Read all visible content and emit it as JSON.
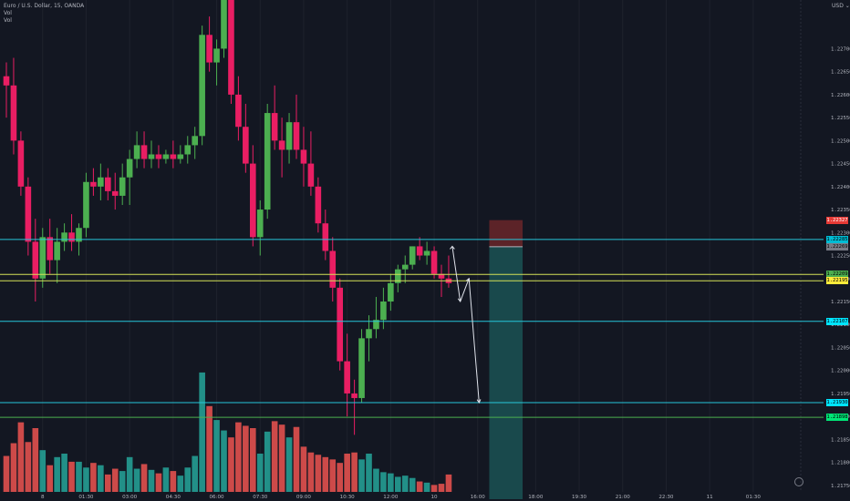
{
  "symbol_title": "Euro / U.S. Dollar, 15, OANDA",
  "indicator_1": "Vol",
  "indicator_2": "Vol",
  "currency": "USD",
  "currency_icon": "chevron-down-icon",
  "settings_icon": "clock-settings-icon",
  "colors": {
    "background": "#131722",
    "up": "#4caf50",
    "down": "#e91e63",
    "vol_up": "#26a69a",
    "vol_down": "#ef5350",
    "cyan_line": "#26c6da",
    "yellow_line": "#d4e157",
    "green_line": "#4caf50"
  },
  "price_badges": [
    {
      "price": 1.22327,
      "label": "1.22327",
      "bg": "#e53935",
      "fg": "#ffffff"
    },
    {
      "price": 1.22285,
      "label": "1.22285",
      "bg": "#00bcd4",
      "fg": "#000000"
    },
    {
      "price": 1.22269,
      "label": "1.22269",
      "bg": "#787b86",
      "fg": "#000000"
    },
    {
      "price": 1.22209,
      "label": "1.22209",
      "bg": "#4caf50",
      "fg": "#000000"
    },
    {
      "price": 1.22195,
      "label": "1.22195",
      "bg": "#ffeb3b",
      "fg": "#000000"
    },
    {
      "price": 1.22107,
      "label": "1.22107",
      "bg": "#00e5ff",
      "fg": "#000000"
    },
    {
      "price": 1.2193,
      "label": "1.21930",
      "bg": "#00e5ff",
      "fg": "#000000"
    },
    {
      "price": 1.21898,
      "label": "1.21898",
      "bg": "#00e676",
      "fg": "#000000"
    }
  ],
  "chart_data": {
    "type": "candlestick",
    "price_ticks": [
      "1.22700",
      "1.22650",
      "1.22600",
      "1.22550",
      "1.22500",
      "1.22450",
      "1.22400",
      "1.22350",
      "1.22300",
      "1.22250",
      "1.22200",
      "1.22150",
      "1.22100",
      "1.22050",
      "1.22000",
      "1.21950",
      "1.21900",
      "1.21850",
      "1.21800",
      "1.21750"
    ],
    "ylim": [
      1.2172,
      1.2279
    ],
    "time_ticks": [
      {
        "label": "8",
        "bar": 5
      },
      {
        "label": "01:30",
        "bar": 11
      },
      {
        "label": "03:00",
        "bar": 17
      },
      {
        "label": "04:30",
        "bar": 23
      },
      {
        "label": "06:00",
        "bar": 29
      },
      {
        "label": "07:30",
        "bar": 35
      },
      {
        "label": "09:00",
        "bar": 41
      },
      {
        "label": "10:30",
        "bar": 47
      },
      {
        "label": "12:00",
        "bar": 53
      },
      {
        "label": "10",
        "bar": 59
      },
      {
        "label": "16:00",
        "bar": 65
      },
      {
        "label": "18:00",
        "bar": 73
      },
      {
        "label": "19:30",
        "bar": 79
      },
      {
        "label": "21:00",
        "bar": 85
      },
      {
        "label": "22:30",
        "bar": 91
      },
      {
        "label": "11",
        "bar": 97
      },
      {
        "label": "01:30",
        "bar": 103
      }
    ],
    "candles": [
      [
        1.2264,
        1.2267,
        1.2255,
        1.2262,
        310
      ],
      [
        1.2262,
        1.2268,
        1.2247,
        1.225,
        420
      ],
      [
        1.225,
        1.2252,
        1.2238,
        1.224,
        600
      ],
      [
        1.224,
        1.2242,
        1.2225,
        1.2228,
        430
      ],
      [
        1.2228,
        1.2233,
        1.2215,
        1.222,
        550
      ],
      [
        1.222,
        1.2231,
        1.2218,
        1.2229,
        360
      ],
      [
        1.2229,
        1.2233,
        1.2221,
        1.2224,
        230
      ],
      [
        1.2224,
        1.2231,
        1.2219,
        1.2228,
        300
      ],
      [
        1.2228,
        1.2232,
        1.2226,
        1.223,
        330
      ],
      [
        1.223,
        1.2234,
        1.2226,
        1.2228,
        260
      ],
      [
        1.2228,
        1.2232,
        1.2225,
        1.2231,
        260
      ],
      [
        1.2231,
        1.2243,
        1.2229,
        1.2241,
        210
      ],
      [
        1.2241,
        1.2244,
        1.2238,
        1.224,
        250
      ],
      [
        1.224,
        1.2245,
        1.2237,
        1.2242,
        230
      ],
      [
        1.2242,
        1.2244,
        1.2237,
        1.2239,
        150
      ],
      [
        1.2239,
        1.2243,
        1.2235,
        1.2238,
        200
      ],
      [
        1.2238,
        1.2245,
        1.2236,
        1.2242,
        180
      ],
      [
        1.2242,
        1.2248,
        1.2236,
        1.2246,
        300
      ],
      [
        1.2246,
        1.2252,
        1.2244,
        1.2249,
        200
      ],
      [
        1.2249,
        1.2252,
        1.2244,
        1.2246,
        240
      ],
      [
        1.2246,
        1.225,
        1.2244,
        1.2247,
        190
      ],
      [
        1.2247,
        1.2249,
        1.2244,
        1.2246,
        160
      ],
      [
        1.2246,
        1.2248,
        1.2245,
        1.2247,
        210
      ],
      [
        1.2247,
        1.225,
        1.2244,
        1.2246,
        180
      ],
      [
        1.2246,
        1.2249,
        1.2245,
        1.2247,
        140
      ],
      [
        1.2247,
        1.2251,
        1.2245,
        1.2249,
        210
      ],
      [
        1.2249,
        1.2253,
        1.2246,
        1.2251,
        310
      ],
      [
        1.2251,
        1.2275,
        1.2249,
        1.2273,
        1030
      ],
      [
        1.2273,
        1.2277,
        1.2265,
        1.2267,
        740
      ],
      [
        1.2267,
        1.2272,
        1.2262,
        1.227,
        620
      ],
      [
        1.227,
        1.229,
        1.2268,
        1.2285,
        530
      ],
      [
        1.2285,
        1.2287,
        1.2258,
        1.226,
        470
      ],
      [
        1.226,
        1.2264,
        1.225,
        1.2253,
        600
      ],
      [
        1.2253,
        1.2258,
        1.2243,
        1.2245,
        570
      ],
      [
        1.2245,
        1.2249,
        1.2227,
        1.2229,
        550
      ],
      [
        1.2229,
        1.2237,
        1.2225,
        1.2235,
        330
      ],
      [
        1.2235,
        1.2258,
        1.2233,
        1.2256,
        520
      ],
      [
        1.2256,
        1.2262,
        1.2248,
        1.225,
        610
      ],
      [
        1.225,
        1.2255,
        1.2242,
        1.2248,
        580
      ],
      [
        1.2248,
        1.2256,
        1.2245,
        1.2254,
        470
      ],
      [
        1.2254,
        1.226,
        1.2246,
        1.2248,
        560
      ],
      [
        1.2248,
        1.2253,
        1.224,
        1.2245,
        390
      ],
      [
        1.2245,
        1.2252,
        1.2238,
        1.224,
        340
      ],
      [
        1.224,
        1.2242,
        1.223,
        1.2232,
        320
      ],
      [
        1.2232,
        1.2235,
        1.2224,
        1.2226,
        300
      ],
      [
        1.2226,
        1.2229,
        1.2215,
        1.2218,
        280
      ],
      [
        1.2218,
        1.222,
        1.22,
        1.2202,
        250
      ],
      [
        1.2202,
        1.2208,
        1.219,
        1.2195,
        330
      ],
      [
        1.2195,
        1.2198,
        1.2186,
        1.2194,
        340
      ],
      [
        1.2194,
        1.2209,
        1.2193,
        1.2207,
        280
      ],
      [
        1.2207,
        1.2212,
        1.2202,
        1.2209,
        330
      ],
      [
        1.2209,
        1.2216,
        1.2207,
        1.2211,
        200
      ],
      [
        1.2211,
        1.2218,
        1.2209,
        1.2215,
        170
      ],
      [
        1.2215,
        1.2221,
        1.2213,
        1.2219,
        160
      ],
      [
        1.2219,
        1.2223,
        1.2217,
        1.2222,
        130
      ],
      [
        1.2222,
        1.2225,
        1.2219,
        1.2223,
        140
      ],
      [
        1.2223,
        1.2227,
        1.2222,
        1.2227,
        120
      ],
      [
        1.2227,
        1.2229,
        1.2224,
        1.2225,
        90
      ],
      [
        1.2225,
        1.2228,
        1.2223,
        1.2226,
        80
      ],
      [
        1.2226,
        1.2227,
        1.222,
        1.2221,
        60
      ],
      [
        1.2221,
        1.2223,
        1.2216,
        1.222,
        70
      ],
      [
        1.222,
        1.2225,
        1.2218,
        1.2219,
        150
      ]
    ],
    "horizontal_lines": [
      {
        "price": 1.22285,
        "color": "#26c6da"
      },
      {
        "price": 1.22209,
        "color": "#d4e157"
      },
      {
        "price": 1.22195,
        "color": "#d4e157"
      },
      {
        "price": 1.22107,
        "color": "#26c6da"
      },
      {
        "price": 1.2193,
        "color": "#26c6da"
      },
      {
        "price": 1.21898,
        "color": "#4caf50"
      }
    ],
    "forecast_path": [
      {
        "bar": 61.5,
        "price": 1.2227
      },
      {
        "bar": 62.6,
        "price": 1.2215
      },
      {
        "bar": 63.8,
        "price": 1.222
      },
      {
        "bar": 65.2,
        "price": 1.2193
      }
    ],
    "position_tool": {
      "start_bar": 66.6,
      "end_bar": 71.2,
      "entry": 1.22269,
      "stop": 1.22327,
      "target": 1.2172
    }
  }
}
